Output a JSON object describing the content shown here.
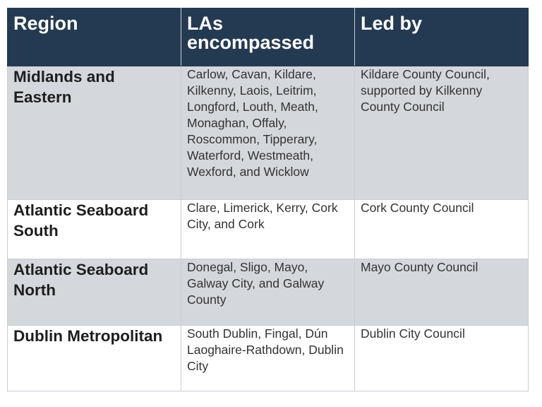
{
  "table": {
    "headers": {
      "region": "Region",
      "las": "LAs encompassed",
      "led_by": "Led by"
    },
    "rows": [
      {
        "region": "Midlands and Eastern",
        "las": "Carlow, Cavan, Kildare, Kilkenny, Laois, Leitrim, Longford, Louth, Meath, Monaghan, Offaly, Roscommon, Tipperary, Waterford, Westmeath, Wexford, and Wicklow",
        "led_by": "Kildare County Council, supported by Kilkenny County Council"
      },
      {
        "region": "Atlantic Seaboard South",
        "las": "Clare, Limerick, Kerry, Cork City, and Cork",
        "led_by": "Cork County Council"
      },
      {
        "region": "Atlantic Seaboard North",
        "las": "Donegal, Sligo, Mayo, Galway City, and Galway County",
        "led_by": "Mayo County Council"
      },
      {
        "region": "Dublin Metropolitan",
        "las": "South Dublin, Fingal, Dún Laoghaire-Rathdown, Dublin City",
        "led_by": "Dublin City Council"
      }
    ]
  },
  "colors": {
    "header_bg": "#243a52",
    "header_text": "#ffffff",
    "shaded_row": "#d4d7dc",
    "white_row": "#ffffff",
    "border": "#c9cdd3"
  }
}
